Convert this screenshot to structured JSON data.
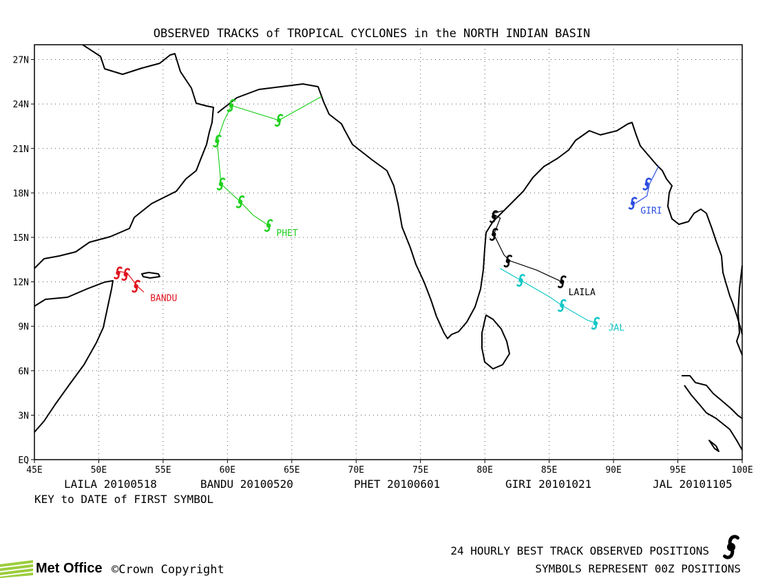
{
  "title": "OBSERVED TRACKS of TROPICAL CYCLONES in the NORTH INDIAN BASIN",
  "axes": {
    "lon_range": [
      45,
      100
    ],
    "lat_range": [
      0,
      28
    ],
    "x_ticks": [
      "45E",
      "50E",
      "55E",
      "60E",
      "65E",
      "70E",
      "75E",
      "80E",
      "85E",
      "90E",
      "95E",
      "100E"
    ],
    "y_ticks": [
      "EQ",
      "3N",
      "6N",
      "9N",
      "12N",
      "15N",
      "18N",
      "21N",
      "24N",
      "27N"
    ],
    "grid": "dotted"
  },
  "colors": {
    "LAILA": "#000000",
    "BANDU": "#e0141e",
    "PHET": "#20d020",
    "GIRI": "#2a4ee0",
    "JAL": "#10c8c8"
  },
  "tracks": [
    {
      "name": "LAILA",
      "label": "LAILA",
      "label_pos": [
        86.5,
        11.1
      ],
      "path": [
        [
          86.0,
          12.0
        ],
        [
          84.0,
          12.8
        ],
        [
          82.0,
          13.4
        ],
        [
          81.5,
          13.8
        ],
        [
          80.7,
          15.2
        ],
        [
          81.2,
          16.3
        ],
        [
          80.6,
          16.6
        ],
        [
          81.4,
          16.8
        ]
      ],
      "positions": [
        [
          86.0,
          12.0
        ],
        [
          81.8,
          13.4
        ],
        [
          80.7,
          15.2
        ],
        [
          80.7,
          16.4
        ]
      ]
    },
    {
      "name": "BANDU",
      "label": "BANDU",
      "label_pos": [
        54.0,
        10.7
      ],
      "path": [
        [
          51.6,
          12.7
        ],
        [
          52.2,
          12.6
        ],
        [
          53.0,
          11.7
        ],
        [
          53.5,
          11.3
        ]
      ],
      "positions": [
        [
          51.5,
          12.6
        ],
        [
          52.1,
          12.5
        ],
        [
          52.9,
          11.7
        ]
      ]
    },
    {
      "name": "PHET",
      "label": "PHET",
      "label_pos": [
        63.8,
        15.1
      ],
      "path": [
        [
          67.3,
          24.5
        ],
        [
          64.0,
          22.9
        ],
        [
          60.3,
          23.9
        ],
        [
          59.7,
          22.8
        ],
        [
          59.2,
          21.5
        ],
        [
          59.3,
          20.5
        ],
        [
          59.5,
          18.6
        ],
        [
          61.0,
          17.4
        ],
        [
          62.0,
          16.5
        ],
        [
          63.2,
          15.8
        ]
      ],
      "positions": [
        [
          63.2,
          15.8
        ],
        [
          61.0,
          17.4
        ],
        [
          59.5,
          18.6
        ],
        [
          59.2,
          21.5
        ],
        [
          60.3,
          23.9
        ],
        [
          64.0,
          22.9
        ]
      ]
    },
    {
      "name": "GIRI",
      "label": "GIRI",
      "label_pos": [
        92.1,
        16.6
      ],
      "path": [
        [
          93.5,
          19.8
        ],
        [
          92.8,
          18.6
        ],
        [
          92.6,
          17.8
        ],
        [
          91.7,
          17.3
        ]
      ],
      "positions": [
        [
          91.5,
          17.3
        ],
        [
          92.6,
          18.6
        ]
      ]
    },
    {
      "name": "JAL",
      "label": "JAL",
      "label_pos": [
        89.6,
        8.7
      ],
      "path": [
        [
          81.2,
          12.9
        ],
        [
          82.8,
          12.1
        ],
        [
          85.0,
          11.0
        ],
        [
          86.0,
          10.4
        ],
        [
          88.0,
          9.4
        ],
        [
          88.8,
          9.2
        ]
      ],
      "positions": [
        [
          82.8,
          12.1
        ],
        [
          86.0,
          10.4
        ],
        [
          88.6,
          9.2
        ]
      ]
    }
  ],
  "key": {
    "caption": "KEY to DATE of FIRST SYMBOL",
    "entries": [
      {
        "name": "LAILA",
        "date": "20100518"
      },
      {
        "name": "BANDU",
        "date": "20100520"
      },
      {
        "name": "PHET",
        "date": "20100601"
      },
      {
        "name": "GIRI",
        "date": "20101021"
      },
      {
        "name": "JAL",
        "date": "20101105"
      }
    ]
  },
  "legend": {
    "line1": "24 HOURLY BEST TRACK OBSERVED POSITIONS",
    "line2": "SYMBOLS REPRESENT 00Z POSITIONS",
    "symbol_icon": "cyclone-symbol-icon"
  },
  "footer": {
    "logo_text": "Met Office",
    "copyright": "©Crown Copyright"
  }
}
